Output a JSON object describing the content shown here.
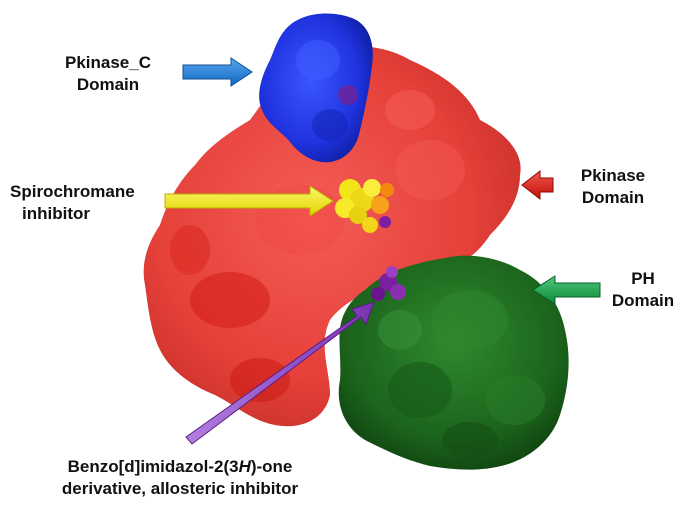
{
  "labels": {
    "pkinase_c": {
      "line1": "Pkinase_C",
      "line2": "Domain"
    },
    "spirochromane": {
      "line1": "Spirochromane",
      "line2": "inhibitor"
    },
    "pkinase": {
      "line1": "Pkinase",
      "line2": "Domain"
    },
    "ph": {
      "line1": "PH",
      "line2": "Domain"
    },
    "benzo": {
      "line1_a": "Benzo[d]imidazol-2(3",
      "line1_b": "H",
      "line1_c": ")-one",
      "line2": "derivative, allosteric inhibitor"
    }
  },
  "colors": {
    "pkinase_domain": "#e8302a",
    "pkinase_c_domain": "#2233dd",
    "ph_domain": "#1f6b1f",
    "spirochromane": "#f2e61a",
    "allosteric": "#7b1fa2",
    "arrow_blue": "#1a7fd6",
    "arrow_yellow": "#f4ef1a",
    "arrow_red": "#e2231a",
    "arrow_green": "#1aa64f",
    "arrow_purple": "#8e4bc2"
  },
  "icons": {
    "pkinase_c_arrow": "right-arrow",
    "spirochromane_arrow": "right-arrow",
    "pkinase_arrow": "left-arrow",
    "ph_arrow": "left-arrow",
    "allosteric_arrow": "diagonal-arrow"
  }
}
